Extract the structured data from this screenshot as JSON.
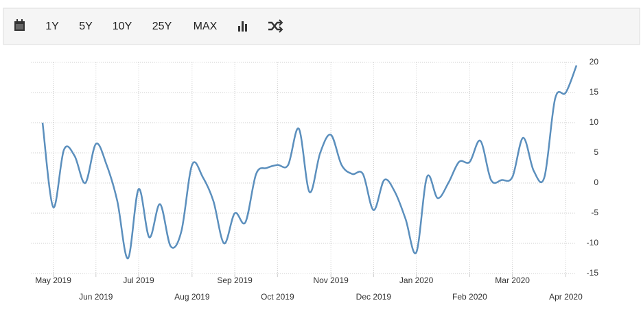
{
  "toolbar": {
    "buttons": [
      "1Y",
      "5Y",
      "10Y",
      "25Y",
      "MAX"
    ]
  },
  "chart_data": {
    "type": "line",
    "categories": [
      null,
      "May 2019",
      null,
      null,
      null,
      "Jun 2019",
      null,
      null,
      null,
      "Jul 2019",
      null,
      null,
      null,
      null,
      "Aug 2019",
      null,
      null,
      null,
      "Sep 2019",
      null,
      null,
      null,
      "Oct 2019",
      null,
      null,
      null,
      null,
      "Nov 2019",
      null,
      null,
      null,
      "Dec 2019",
      null,
      null,
      null,
      "Jan 2020",
      null,
      null,
      null,
      null,
      "Feb 2020",
      null,
      null,
      null,
      "Mar 2020",
      null,
      null,
      null,
      null,
      "Apr 2020",
      null
    ],
    "series": [
      {
        "color": "#5b8fbd",
        "values": [
          10,
          -4,
          5.5,
          4.5,
          0,
          6.5,
          3,
          -3,
          -12.5,
          -1,
          -9,
          -3.5,
          -10.5,
          -8,
          3,
          1,
          -3,
          -10,
          -5,
          -6.5,
          1.5,
          2.5,
          3,
          3,
          9,
          -1.5,
          5,
          8,
          3,
          1.5,
          1.5,
          -4.5,
          0.5,
          -1.5,
          -6,
          -11.5,
          1,
          -2.5,
          0,
          3.5,
          3.5,
          7,
          0.5,
          0.5,
          1,
          7.5,
          2,
          1,
          14,
          15,
          19.5
        ]
      }
    ],
    "ylim": [
      -15,
      20
    ],
    "yticks": [
      -15,
      -10,
      -5,
      0,
      5,
      10,
      15,
      20
    ],
    "grid": true
  }
}
